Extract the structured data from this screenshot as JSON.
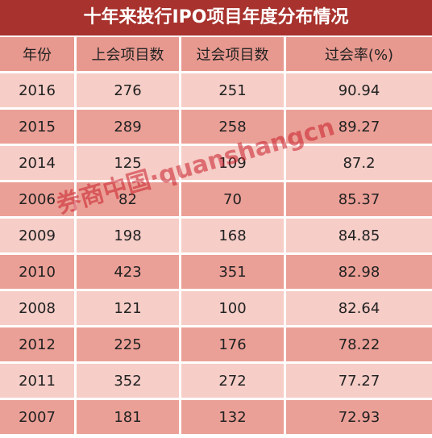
{
  "title": "十年来投行IPO项目年度分布情况",
  "table": {
    "header": [
      "年份",
      "上会项目数",
      "过会项目数",
      "过会率(%)"
    ],
    "rows": [
      [
        "2016",
        "276",
        "251",
        "90.94"
      ],
      [
        "2015",
        "289",
        "258",
        "89.27"
      ],
      [
        "2014",
        "125",
        "109",
        "87.2"
      ],
      [
        "2006",
        "82",
        "70",
        "85.37"
      ],
      [
        "2009",
        "198",
        "168",
        "84.85"
      ],
      [
        "2010",
        "423",
        "351",
        "82.98"
      ],
      [
        "2008",
        "121",
        "100",
        "82.64"
      ],
      [
        "2012",
        "225",
        "176",
        "78.22"
      ],
      [
        "2011",
        "352",
        "272",
        "77.27"
      ],
      [
        "2007",
        "181",
        "132",
        "72.93"
      ]
    ]
  },
  "watermark": "券商中国·quanshangcn"
}
